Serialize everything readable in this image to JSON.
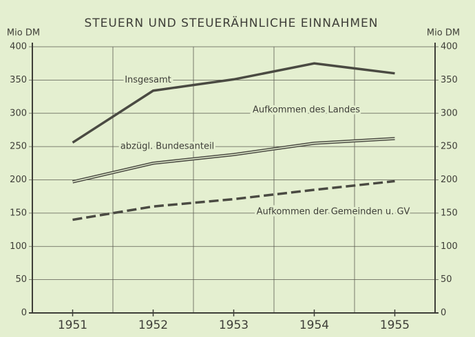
{
  "chart_data": {
    "type": "line",
    "title": "STEUERN UND STEUERÄHNLICHE EINNAHMEN",
    "y_label": "Mio DM",
    "y2_label": "Mio DM",
    "categories": [
      "1951",
      "1952",
      "1953",
      "1954",
      "1955"
    ],
    "series": [
      {
        "name": "Insgesamt",
        "color": "#4a4a42",
        "style": "solid",
        "values": [
          256,
          334,
          351,
          375,
          360
        ]
      },
      {
        "name": "Aufkommen des Landes",
        "color": "#4a4a42",
        "style": "double",
        "values": [
          197,
          225,
          238,
          255,
          262
        ]
      },
      {
        "name": "Aufkommen der Gemeinden u. GV",
        "color": "#4a4a42",
        "style": "dashed",
        "values": [
          140,
          160,
          171,
          185,
          198
        ]
      }
    ],
    "annotation": "abzügl. Bundesanteil",
    "ylim": [
      0,
      400
    ],
    "yticks": [
      0,
      50,
      100,
      150,
      200,
      250,
      300,
      350,
      400
    ],
    "y2lim": [
      0,
      400
    ],
    "y2ticks": [
      0,
      50,
      100,
      150,
      200,
      250,
      300,
      350,
      400
    ],
    "grid": true
  }
}
